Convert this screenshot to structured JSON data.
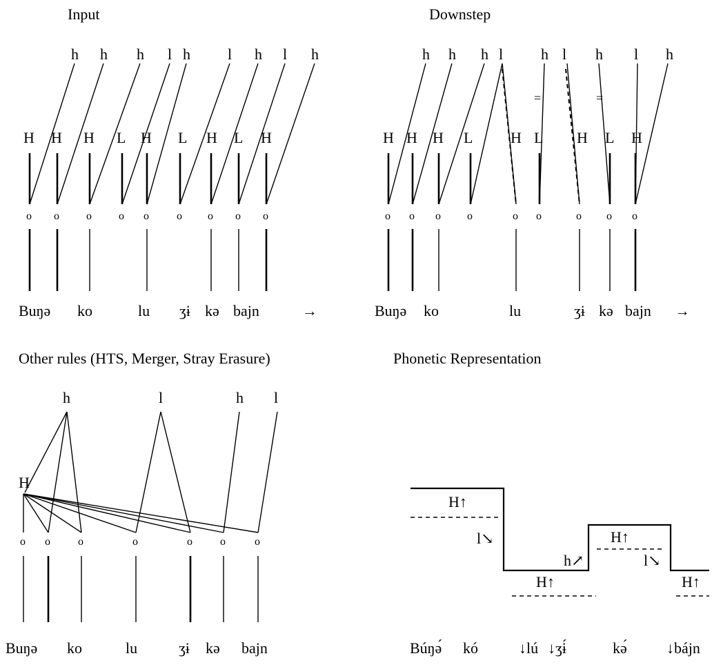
{
  "panels": {
    "input": {
      "title": "Input",
      "register": [
        "h",
        "h",
        "h",
        "l",
        "h",
        "l",
        "h",
        "l",
        "h"
      ],
      "tones": [
        "H",
        "H",
        "H",
        "L",
        "H",
        "L",
        "H",
        "L",
        "H"
      ],
      "mora": "o",
      "words": [
        "Buŋə",
        "ko",
        "lu",
        "ʒɨ",
        "kə",
        "bajn"
      ],
      "arrow": "→"
    },
    "downstep": {
      "title": "Downstep",
      "register": [
        "h",
        "h",
        "h",
        "l",
        "h",
        "l",
        "h",
        "l",
        "h"
      ],
      "tones": [
        "H",
        "H",
        "H",
        "L",
        "H",
        "L",
        "H",
        "L",
        "H"
      ],
      "delink_mark": "=",
      "mora": "o",
      "words": [
        "Buŋə",
        "ko",
        "lu",
        "ʒɨ",
        "kə",
        "bajn"
      ],
      "arrow": "→"
    },
    "other_rules": {
      "title": "Other rules (HTS, Merger, Stray Erasure)",
      "register": [
        "h",
        "l",
        "h",
        "l"
      ],
      "tone": "H",
      "mora": "o",
      "words": [
        "Buŋə",
        "ko",
        "lu",
        "ʒɨ",
        "kə",
        "bajn"
      ]
    },
    "phonetic": {
      "title": "Phonetic Representation",
      "labels": [
        "H↑",
        "l↘",
        "H↑",
        "h↗",
        "H↑",
        "l↘",
        "H↑"
      ],
      "words": [
        "Búŋə́",
        "kó",
        "↓lú",
        "↓ʒɨ́",
        "kə́",
        "↓bájn"
      ]
    }
  }
}
